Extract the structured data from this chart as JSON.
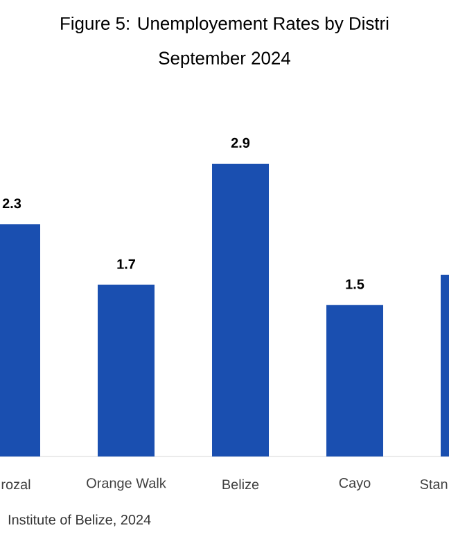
{
  "chart_data": {
    "type": "bar",
    "title": "Figure 5: Unemployement Rates by Distri",
    "subtitle": "September 2024",
    "categories": [
      "rozal",
      "Orange Walk",
      "Belize",
      "Cayo",
      "Stan"
    ],
    "values": [
      2.3,
      1.7,
      2.9,
      1.5,
      1.8
    ],
    "value_labels": [
      "2.3",
      "1.7",
      "2.9",
      "1.5",
      null
    ],
    "color": "#1a4fb0",
    "annotations": [
      "Institute of Belize, 2024"
    ]
  }
}
